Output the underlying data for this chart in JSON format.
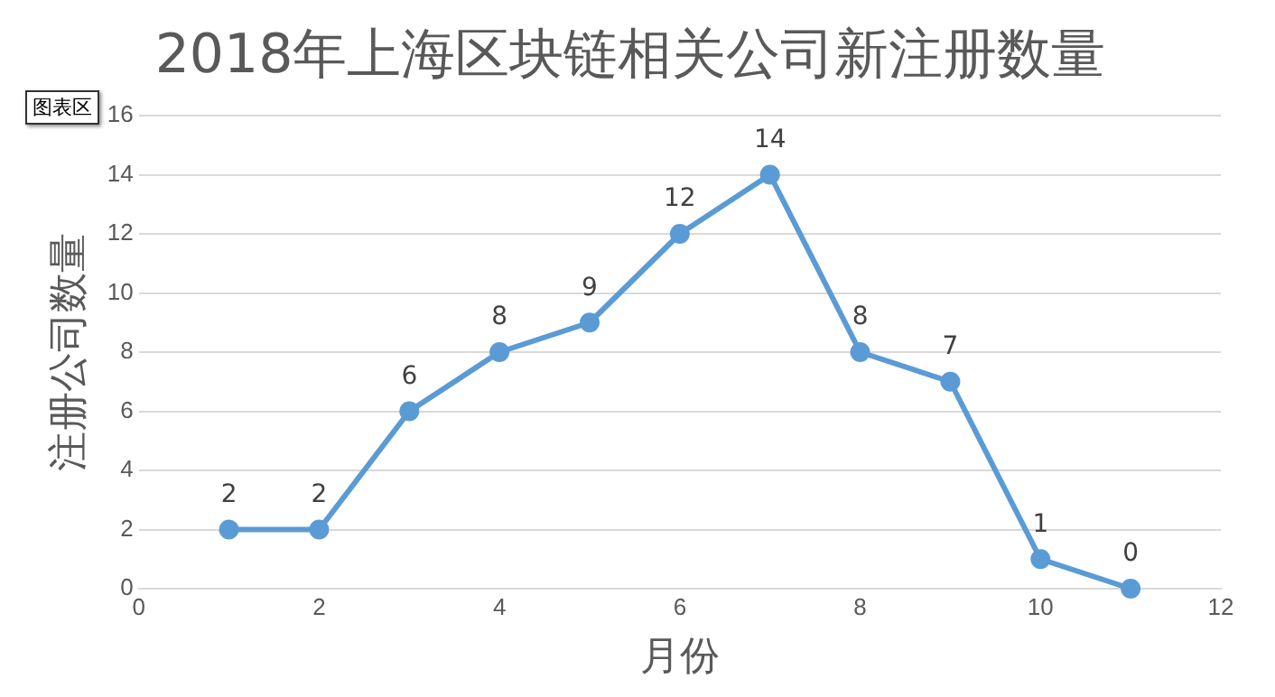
{
  "chart_data": {
    "type": "line",
    "title": "2018年上海区块链相关公司新注册数量",
    "xlabel": "月份",
    "ylabel": "注册公司数量",
    "x": [
      1,
      2,
      3,
      4,
      5,
      6,
      7,
      8,
      9,
      10,
      11
    ],
    "series": [
      {
        "color": "#5b9bd5",
        "values": [
          2,
          2,
          6,
          8,
          9,
          12,
          14,
          8,
          7,
          1,
          0
        ]
      }
    ],
    "xlim": [
      0,
      12
    ],
    "xticks": [
      0,
      2,
      4,
      6,
      8,
      10,
      12
    ],
    "ylim": [
      0,
      16
    ],
    "yticks": [
      0,
      2,
      4,
      6,
      8,
      10,
      12,
      14,
      16
    ],
    "grid": "y",
    "legend": false,
    "marker": "circle",
    "line_style": "solid",
    "data_labels": true,
    "annotations": [
      "图表区"
    ]
  }
}
